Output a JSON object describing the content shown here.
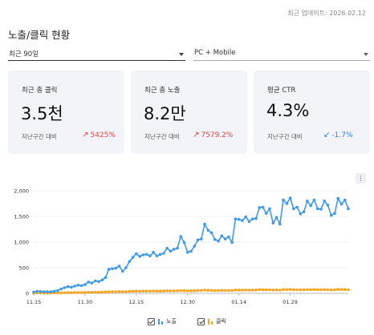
{
  "header": {
    "updated": "최근 업데이트: 2026.02.12",
    "title": "노출/클릭 현황"
  },
  "filters": {
    "period": "최근 90일",
    "device": "PC + Mobile"
  },
  "cards": [
    {
      "label": "최근 총 클릭",
      "value": "3.5천",
      "compare_label": "지난구간 대비",
      "delta": "5425%",
      "direction": "up",
      "arrow": "↗"
    },
    {
      "label": "최근 총 노출",
      "value": "8.2만",
      "compare_label": "지난구간 대비",
      "delta": "7579.2%",
      "direction": "up",
      "arrow": "↗"
    },
    {
      "label": "평균 CTR",
      "value": "4.3%",
      "compare_label": "지난구간 대비",
      "delta": "-1.7%",
      "direction": "down",
      "arrow": "↙"
    }
  ],
  "chart_menu": "⋮",
  "legend": {
    "impressions": "노출",
    "clicks": "클릭"
  },
  "chart_data": {
    "type": "line",
    "ylim": [
      0,
      2000
    ],
    "yticks": [
      0,
      500,
      1000,
      1500,
      2000
    ],
    "ytick_labels": [
      "0",
      "500",
      "1,000",
      "1,500",
      "2,000"
    ],
    "xtick_labels": [
      "11.15",
      "11.30",
      "12.15",
      "12.30",
      "01.14",
      "01.29"
    ],
    "xtick_index": [
      0,
      15,
      30,
      45,
      60,
      75
    ],
    "series": [
      {
        "name": "노출",
        "color": "#3f9be8",
        "values": [
          25,
          40,
          35,
          30,
          30,
          30,
          40,
          55,
          85,
          110,
          130,
          120,
          140,
          160,
          150,
          170,
          220,
          200,
          240,
          230,
          260,
          310,
          470,
          480,
          490,
          530,
          430,
          500,
          620,
          700,
          770,
          720,
          750,
          760,
          730,
          800,
          730,
          760,
          780,
          880,
          820,
          860,
          880,
          1110,
          990,
          800,
          820,
          920,
          1040,
          1060,
          1350,
          1230,
          1180,
          1050,
          1020,
          1120,
          1060,
          1100,
          990,
          1450,
          1440,
          1420,
          1490,
          1400,
          1450,
          1460,
          1670,
          1680,
          1560,
          1650,
          1370,
          1480,
          1350,
          1820,
          1750,
          1860,
          1650,
          1680,
          1550,
          1590,
          1800,
          1710,
          1820,
          1650,
          1640,
          1800,
          1720,
          1520,
          1560,
          1850,
          1740,
          1820,
          1650
        ]
      },
      {
        "name": "클릭",
        "color": "#f5a623",
        "values": [
          5,
          8,
          6,
          5,
          5,
          6,
          8,
          9,
          10,
          12,
          14,
          13,
          15,
          16,
          16,
          18,
          20,
          19,
          22,
          21,
          24,
          26,
          30,
          32,
          31,
          34,
          30,
          33,
          38,
          40,
          42,
          40,
          43,
          44,
          42,
          45,
          43,
          44,
          46,
          50,
          48,
          49,
          50,
          55,
          52,
          48,
          49,
          52,
          56,
          57,
          62,
          60,
          58,
          55,
          54,
          58,
          56,
          57,
          54,
          65,
          64,
          63,
          66,
          63,
          64,
          65,
          70,
          71,
          68,
          70,
          64,
          67,
          63,
          75,
          73,
          76,
          70,
          71,
          68,
          69,
          74,
          72,
          75,
          70,
          70,
          74,
          72,
          67,
          68,
          76,
          73,
          75,
          70
        ]
      }
    ]
  }
}
